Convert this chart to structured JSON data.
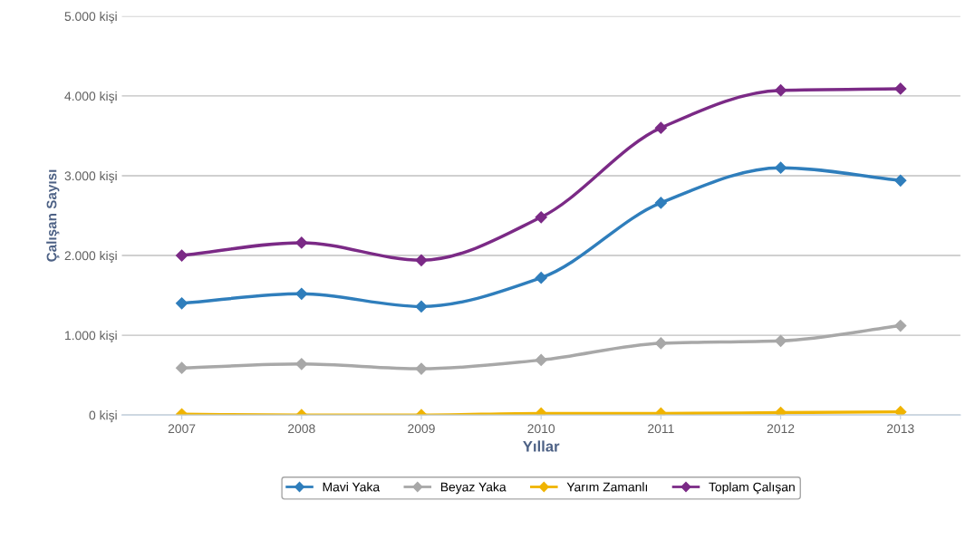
{
  "chart_data": {
    "type": "line",
    "xlabel": "Yıllar",
    "ylabel": "Çalışan Sayısı",
    "categories": [
      "2007",
      "2008",
      "2009",
      "2010",
      "2011",
      "2012",
      "2013"
    ],
    "series": [
      {
        "name": "Mavi Yaka",
        "color": "#2f7ebc",
        "values": [
          1400,
          1520,
          1360,
          1720,
          2660,
          3100,
          2940
        ]
      },
      {
        "name": "Beyaz Yaka",
        "color": "#a8a8a8",
        "values": [
          590,
          640,
          580,
          690,
          900,
          930,
          1120
        ]
      },
      {
        "name": "Yarım Zamanlı",
        "color": "#f0b400",
        "values": [
          10,
          0,
          0,
          20,
          20,
          30,
          40
        ]
      },
      {
        "name": "Toplam Çalışan",
        "color": "#7b2a86",
        "values": [
          2000,
          2160,
          1940,
          2480,
          3600,
          4070,
          4090
        ]
      }
    ],
    "ylim": [
      0,
      5000
    ],
    "yticks": [
      {
        "value": 0,
        "label": "0 kişi"
      },
      {
        "value": 1000,
        "label": "1.000 kişi"
      },
      {
        "value": 2000,
        "label": "2.000 kişi"
      },
      {
        "value": 3000,
        "label": "3.000 kişi"
      },
      {
        "value": 4000,
        "label": "4.000 kişi"
      },
      {
        "value": 5000,
        "label": "5.000 kişi"
      }
    ],
    "grid": "y",
    "legend": "bottom",
    "marker": "diamond",
    "line_style": "solid"
  }
}
